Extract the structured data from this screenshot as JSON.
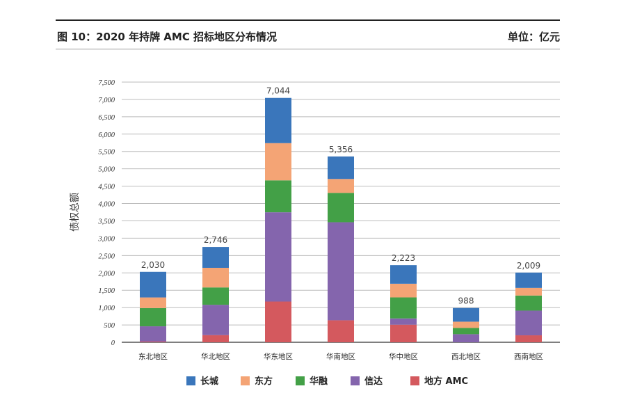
{
  "header": {
    "title": "图 10：2020 年持牌 AMC 招标地区分布情况",
    "unit": "单位：亿元"
  },
  "chart_data": {
    "type": "bar",
    "stacked": true,
    "ylabel": "债权总额",
    "ylim": [
      0,
      7500
    ],
    "yticks": [
      0,
      500,
      1000,
      1500,
      2000,
      2500,
      3000,
      3500,
      4000,
      4500,
      5000,
      5500,
      6000,
      6500,
      7000,
      7500
    ],
    "ytick_labels": [
      "0",
      "500",
      "1,000",
      "1,500",
      "2,000",
      "2,500",
      "3,000",
      "3,500",
      "4,000",
      "4,500",
      "5,000",
      "5,500",
      "6,000",
      "6,500",
      "7,000",
      "7,500"
    ],
    "grid": true,
    "legend": "bottom",
    "categories": [
      "东北地区",
      "华北地区",
      "华东地区",
      "华南地区",
      "华中地区",
      "西北地区",
      "西南地区"
    ],
    "series": [
      {
        "name": "地方 AMC",
        "color": "#d4595e",
        "values": [
          20,
          206,
          1173,
          633,
          507,
          0,
          200
        ]
      },
      {
        "name": "信达",
        "color": "#8465ad",
        "values": [
          440,
          874,
          2574,
          2827,
          180,
          233,
          713
        ]
      },
      {
        "name": "华融",
        "color": "#43a047",
        "values": [
          526,
          500,
          920,
          847,
          606,
          180,
          434
        ]
      },
      {
        "name": "东方",
        "color": "#f4a475",
        "values": [
          306,
          566,
          1073,
          400,
          394,
          180,
          220
        ]
      },
      {
        "name": "长城",
        "color": "#3a76bb",
        "values": [
          738,
          600,
          1304,
          649,
          536,
          395,
          442
        ]
      }
    ],
    "totals": [
      "2,030",
      "2,746",
      "7,044",
      "5,356",
      "2,223",
      "988",
      "2,009"
    ],
    "legend_order": [
      "长城",
      "东方",
      "华融",
      "信达",
      "地方 AMC"
    ]
  }
}
